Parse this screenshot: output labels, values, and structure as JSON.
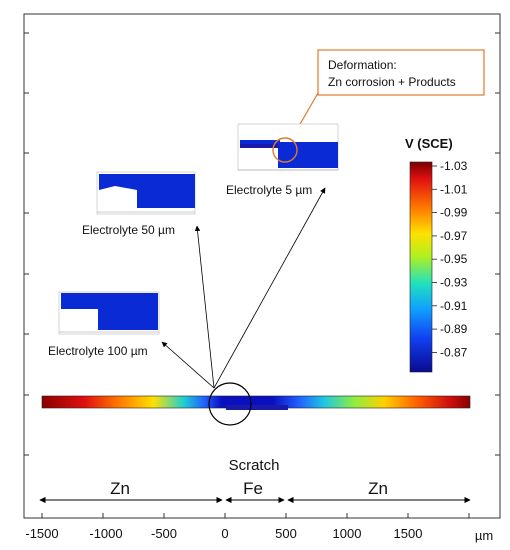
{
  "callout": {
    "line1": "Deformation:",
    "line2": "Zn corrosion + Products",
    "border_color": "#e07a2e"
  },
  "insets": {
    "e5": "Electrolyte 5 µm",
    "e50": "Electrolyte 50 µm",
    "e100": "Electrolyte 100 µm"
  },
  "colorbar": {
    "title": "V (SCE)",
    "ticks": [
      "-1.03",
      "-1.01",
      "-0.99",
      "-0.97",
      "-0.95",
      "-0.93",
      "-0.91",
      "-0.89",
      "-0.87"
    ]
  },
  "labels": {
    "scratch": "Scratch",
    "zn_left": "Zn",
    "fe": "Fe",
    "zn_right": "Zn"
  },
  "x_axis": {
    "ticks": [
      "-1500",
      "-1000",
      "-500",
      "0",
      "500",
      "1000",
      "1500"
    ],
    "unit": "µm"
  },
  "colors": {
    "inset_blue": "#0a2ad6",
    "fe_blue": "#1a1aa8"
  }
}
